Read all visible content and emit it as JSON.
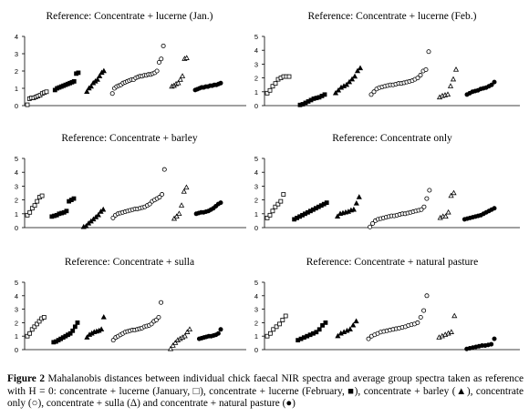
{
  "chart_data": [
    {
      "type": "scatter",
      "title": "Reference: Concentrate + lucerne (Jan.)",
      "ylim": [
        0,
        4
      ],
      "yticks": [
        0,
        1,
        2,
        3,
        4
      ],
      "grid": false,
      "series": [
        {
          "name": "lucerne-jan",
          "marker": "square-open",
          "values": [
            0.05,
            0.4,
            0.45,
            0.45,
            0.5,
            0.55,
            0.6,
            0.7,
            0.75,
            0.8
          ]
        },
        {
          "name": "lucerne-feb",
          "marker": "square-filled",
          "values": [
            0.9,
            1.0,
            1.05,
            1.1,
            1.15,
            1.2,
            1.25,
            1.3,
            1.35,
            1.4,
            1.85,
            1.9
          ]
        },
        {
          "name": "barley",
          "marker": "triangle-filled",
          "values": [
            0.8,
            1.0,
            1.1,
            1.3,
            1.4,
            1.5,
            1.7,
            1.9,
            2.0
          ]
        },
        {
          "name": "conc-only",
          "marker": "circle-open",
          "values": [
            0.7,
            1.0,
            1.1,
            1.15,
            1.2,
            1.3,
            1.35,
            1.4,
            1.45,
            1.5,
            1.5,
            1.6,
            1.65,
            1.7,
            1.7,
            1.75,
            1.75,
            1.8,
            1.8,
            1.85,
            1.9,
            2.0,
            2.5,
            2.7,
            3.45
          ]
        },
        {
          "name": "sulla",
          "marker": "triangle-open",
          "values": [
            1.1,
            1.15,
            1.25,
            1.3,
            1.5,
            1.7,
            2.7,
            2.75
          ]
        },
        {
          "name": "pasture",
          "marker": "circle-filled",
          "values": [
            0.9,
            0.95,
            1.0,
            1.05,
            1.05,
            1.1,
            1.1,
            1.15,
            1.15,
            1.2,
            1.2,
            1.25,
            1.3
          ]
        }
      ]
    },
    {
      "type": "scatter",
      "title": "Reference: Concentrate + lucerne (Feb.)",
      "ylim": [
        0,
        5
      ],
      "yticks": [
        0,
        1,
        2,
        3,
        4,
        5
      ],
      "grid": false,
      "series": [
        {
          "name": "lucerne-jan",
          "marker": "square-open",
          "values": [
            0.9,
            1.1,
            1.4,
            1.6,
            1.9,
            2.0,
            2.1,
            2.1,
            2.1
          ]
        },
        {
          "name": "lucerne-feb",
          "marker": "square-filled",
          "values": [
            0.05,
            0.1,
            0.2,
            0.3,
            0.4,
            0.5,
            0.55,
            0.6,
            0.7,
            0.8
          ]
        },
        {
          "name": "barley",
          "marker": "triangle-filled",
          "values": [
            0.9,
            1.1,
            1.3,
            1.4,
            1.5,
            1.7,
            1.9,
            2.1,
            2.5,
            2.7
          ]
        },
        {
          "name": "conc-only",
          "marker": "circle-open",
          "values": [
            0.8,
            1.0,
            1.2,
            1.3,
            1.35,
            1.4,
            1.45,
            1.5,
            1.5,
            1.55,
            1.6,
            1.6,
            1.65,
            1.7,
            1.75,
            1.8,
            1.9,
            2.0,
            2.2,
            2.5,
            2.6,
            3.9
          ]
        },
        {
          "name": "sulla",
          "marker": "triangle-open",
          "values": [
            0.6,
            0.7,
            0.75,
            0.8,
            1.4,
            1.9,
            2.6
          ]
        },
        {
          "name": "pasture",
          "marker": "circle-filled",
          "values": [
            0.8,
            0.9,
            1.0,
            1.05,
            1.1,
            1.2,
            1.25,
            1.3,
            1.4,
            1.5,
            1.7
          ]
        }
      ]
    },
    {
      "type": "scatter",
      "title": "Reference: Concentrate + barley",
      "ylim": [
        0,
        5
      ],
      "yticks": [
        0,
        1,
        2,
        3,
        4,
        5
      ],
      "grid": false,
      "series": [
        {
          "name": "lucerne-jan",
          "marker": "square-open",
          "values": [
            0.9,
            1.1,
            1.4,
            1.6,
            1.9,
            2.2,
            2.3
          ]
        },
        {
          "name": "lucerne-feb",
          "marker": "square-filled",
          "values": [
            0.8,
            0.85,
            0.9,
            1.0,
            1.05,
            1.1,
            1.2,
            1.9,
            2.0,
            2.1
          ]
        },
        {
          "name": "barley",
          "marker": "triangle-filled",
          "values": [
            0.05,
            0.1,
            0.3,
            0.45,
            0.6,
            0.75,
            0.9,
            1.15,
            1.3
          ]
        },
        {
          "name": "conc-only",
          "marker": "circle-open",
          "values": [
            0.7,
            0.9,
            1.0,
            1.05,
            1.1,
            1.15,
            1.2,
            1.25,
            1.3,
            1.35,
            1.35,
            1.4,
            1.45,
            1.5,
            1.6,
            1.7,
            1.9,
            2.0,
            2.1,
            2.2,
            2.4,
            4.2
          ]
        },
        {
          "name": "sulla",
          "marker": "triangle-open",
          "values": [
            0.65,
            0.8,
            1.0,
            1.6,
            2.6,
            2.9
          ]
        },
        {
          "name": "pasture",
          "marker": "circle-filled",
          "values": [
            1.0,
            1.05,
            1.1,
            1.1,
            1.15,
            1.2,
            1.3,
            1.4,
            1.55,
            1.7,
            1.8
          ]
        }
      ]
    },
    {
      "type": "scatter",
      "title": "Reference: Concentrate only",
      "ylim": [
        0,
        5
      ],
      "yticks": [
        0,
        1,
        2,
        3,
        4,
        5
      ],
      "grid": false,
      "series": [
        {
          "name": "lucerne-jan",
          "marker": "square-open",
          "values": [
            0.7,
            0.9,
            1.2,
            1.5,
            1.7,
            1.9,
            2.4
          ]
        },
        {
          "name": "lucerne-feb",
          "marker": "square-filled",
          "values": [
            0.6,
            0.7,
            0.8,
            0.9,
            1.0,
            1.1,
            1.2,
            1.3,
            1.4,
            1.5,
            1.6,
            1.7,
            1.8
          ]
        },
        {
          "name": "barley",
          "marker": "triangle-filled",
          "values": [
            0.8,
            1.0,
            1.05,
            1.1,
            1.15,
            1.25,
            1.3,
            1.75,
            2.2
          ]
        },
        {
          "name": "conc-only",
          "marker": "circle-open",
          "values": [
            0.05,
            0.3,
            0.5,
            0.6,
            0.65,
            0.7,
            0.75,
            0.8,
            0.85,
            0.85,
            0.9,
            0.95,
            1.0,
            1.0,
            1.05,
            1.1,
            1.15,
            1.2,
            1.25,
            1.3,
            1.5,
            2.1,
            2.7
          ]
        },
        {
          "name": "sulla",
          "marker": "triangle-open",
          "values": [
            0.7,
            0.8,
            0.8,
            1.1,
            2.3,
            2.5
          ]
        },
        {
          "name": "pasture",
          "marker": "circle-filled",
          "values": [
            0.6,
            0.65,
            0.7,
            0.75,
            0.8,
            0.85,
            0.9,
            1.0,
            1.1,
            1.2,
            1.3,
            1.4
          ]
        }
      ]
    },
    {
      "type": "scatter",
      "title": "Reference: Concentrate + sulla",
      "ylim": [
        0,
        5
      ],
      "yticks": [
        0,
        1,
        2,
        3,
        4,
        5
      ],
      "grid": false,
      "series": [
        {
          "name": "lucerne-jan",
          "marker": "square-open",
          "values": [
            1.0,
            1.2,
            1.5,
            1.7,
            1.9,
            2.1,
            2.3,
            2.4
          ]
        },
        {
          "name": "lucerne-feb",
          "marker": "square-filled",
          "values": [
            0.55,
            0.6,
            0.7,
            0.8,
            0.9,
            1.0,
            1.1,
            1.2,
            1.4,
            1.7,
            2.0
          ]
        },
        {
          "name": "barley",
          "marker": "triangle-filled",
          "values": [
            0.9,
            1.1,
            1.2,
            1.3,
            1.35,
            1.4,
            1.5,
            2.4
          ]
        },
        {
          "name": "conc-only",
          "marker": "circle-open",
          "values": [
            0.7,
            0.9,
            1.0,
            1.1,
            1.2,
            1.3,
            1.35,
            1.4,
            1.45,
            1.45,
            1.5,
            1.55,
            1.6,
            1.7,
            1.75,
            1.8,
            1.9,
            2.1,
            2.2,
            2.4,
            3.5
          ]
        },
        {
          "name": "sulla",
          "marker": "triangle-open",
          "values": [
            0.05,
            0.3,
            0.5,
            0.7,
            0.8,
            0.9,
            1.0,
            1.3,
            1.5
          ]
        },
        {
          "name": "pasture",
          "marker": "circle-filled",
          "values": [
            0.8,
            0.85,
            0.9,
            0.95,
            1.0,
            1.0,
            1.05,
            1.1,
            1.2,
            1.5
          ]
        }
      ]
    },
    {
      "type": "scatter",
      "title": "Reference: Concentrate + natural pasture",
      "ylim": [
        0,
        5
      ],
      "yticks": [
        0,
        1,
        2,
        3,
        4,
        5
      ],
      "grid": false,
      "series": [
        {
          "name": "lucerne-jan",
          "marker": "square-open",
          "values": [
            1.0,
            1.2,
            1.5,
            1.7,
            1.9,
            2.2,
            2.5
          ]
        },
        {
          "name": "lucerne-feb",
          "marker": "square-filled",
          "values": [
            0.7,
            0.8,
            0.9,
            1.0,
            1.1,
            1.2,
            1.3,
            1.5,
            1.8,
            2.0
          ]
        },
        {
          "name": "barley",
          "marker": "triangle-filled",
          "values": [
            1.0,
            1.2,
            1.3,
            1.4,
            1.5,
            1.8,
            2.1
          ]
        },
        {
          "name": "conc-only",
          "marker": "circle-open",
          "values": [
            0.8,
            1.0,
            1.1,
            1.2,
            1.3,
            1.35,
            1.4,
            1.45,
            1.5,
            1.55,
            1.6,
            1.65,
            1.7,
            1.8,
            1.85,
            1.9,
            2.0,
            2.4,
            2.9,
            4.0
          ]
        },
        {
          "name": "sulla",
          "marker": "triangle-open",
          "values": [
            0.9,
            1.0,
            1.1,
            1.2,
            1.3,
            2.5
          ]
        },
        {
          "name": "pasture",
          "marker": "circle-filled",
          "values": [
            0.05,
            0.1,
            0.15,
            0.2,
            0.25,
            0.3,
            0.3,
            0.35,
            0.4,
            0.8
          ]
        }
      ]
    }
  ],
  "caption": {
    "label": "Figure 2",
    "text": " Mahalanobis distances between individual chick faecal NIR spectra and average group spectra taken as reference with H = 0: concentrate + lucerne (January, □), concentrate + lucerne (February, ■), concentrate + barley (▲), concentrate only (○), concentrate + sulla (Δ) and concentrate + natural pasture (●)"
  }
}
